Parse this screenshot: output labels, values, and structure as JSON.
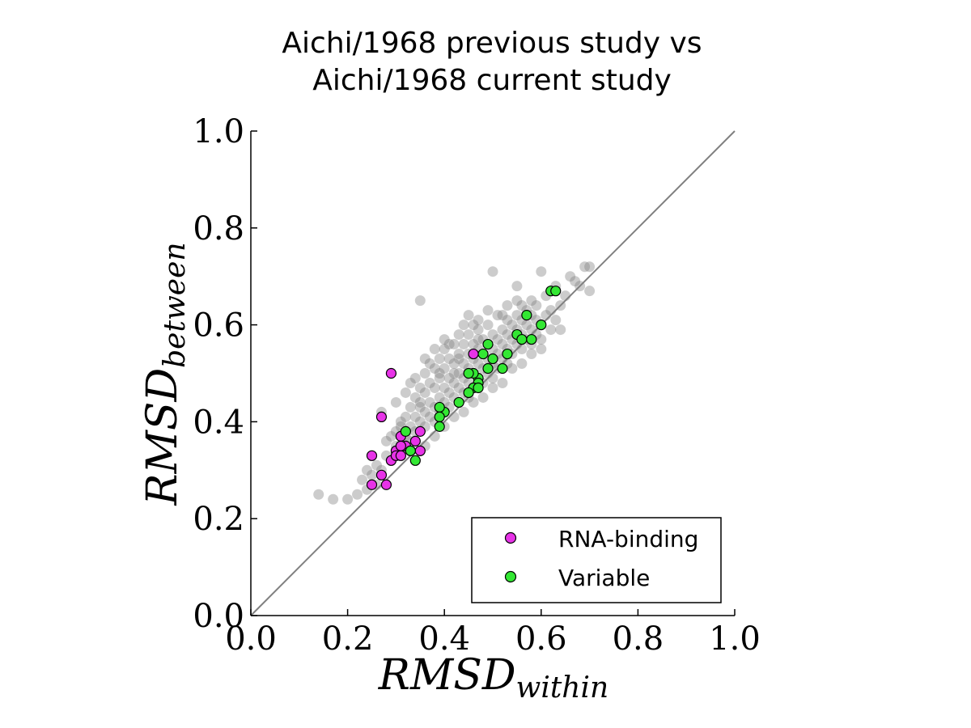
{
  "chart_data": {
    "type": "scatter",
    "title": [
      "Aichi/1968 previous study vs",
      "Aichi/1968 current study"
    ],
    "xlabel": {
      "main": "RMSD",
      "sub": "within"
    },
    "ylabel": {
      "main": "RMSD",
      "sub": "between"
    },
    "xlim": [
      0.0,
      1.0
    ],
    "ylim": [
      0.0,
      1.0
    ],
    "xticks": [
      "0.0",
      "0.2",
      "0.4",
      "0.6",
      "0.8",
      "1.0"
    ],
    "yticks": [
      "0.0",
      "0.2",
      "0.4",
      "0.6",
      "0.8",
      "1.0"
    ],
    "grid": false,
    "legend_position": "bottom-right",
    "reference_line": {
      "type": "y=x",
      "color": "#808080"
    },
    "series": [
      {
        "name": "",
        "color": "#808080",
        "opacity": 0.4,
        "points": [
          [
            0.14,
            0.25
          ],
          [
            0.17,
            0.24
          ],
          [
            0.2,
            0.24
          ],
          [
            0.22,
            0.25
          ],
          [
            0.23,
            0.28
          ],
          [
            0.24,
            0.26
          ],
          [
            0.25,
            0.29
          ],
          [
            0.26,
            0.31
          ],
          [
            0.27,
            0.3
          ],
          [
            0.28,
            0.33
          ],
          [
            0.28,
            0.36
          ],
          [
            0.29,
            0.32
          ],
          [
            0.3,
            0.35
          ],
          [
            0.3,
            0.38
          ],
          [
            0.31,
            0.34
          ],
          [
            0.31,
            0.4
          ],
          [
            0.32,
            0.37
          ],
          [
            0.32,
            0.41
          ],
          [
            0.33,
            0.36
          ],
          [
            0.33,
            0.39
          ],
          [
            0.33,
            0.43
          ],
          [
            0.34,
            0.38
          ],
          [
            0.34,
            0.41
          ],
          [
            0.34,
            0.45
          ],
          [
            0.35,
            0.4
          ],
          [
            0.35,
            0.43
          ],
          [
            0.35,
            0.47
          ],
          [
            0.36,
            0.39
          ],
          [
            0.36,
            0.42
          ],
          [
            0.36,
            0.46
          ],
          [
            0.36,
            0.5
          ],
          [
            0.37,
            0.41
          ],
          [
            0.37,
            0.44
          ],
          [
            0.37,
            0.48
          ],
          [
            0.38,
            0.4
          ],
          [
            0.38,
            0.43
          ],
          [
            0.38,
            0.47
          ],
          [
            0.38,
            0.51
          ],
          [
            0.39,
            0.42
          ],
          [
            0.39,
            0.45
          ],
          [
            0.39,
            0.49
          ],
          [
            0.39,
            0.53
          ],
          [
            0.4,
            0.44
          ],
          [
            0.4,
            0.47
          ],
          [
            0.4,
            0.51
          ],
          [
            0.41,
            0.43
          ],
          [
            0.41,
            0.46
          ],
          [
            0.41,
            0.49
          ],
          [
            0.41,
            0.53
          ],
          [
            0.42,
            0.45
          ],
          [
            0.42,
            0.48
          ],
          [
            0.42,
            0.52
          ],
          [
            0.42,
            0.56
          ],
          [
            0.43,
            0.44
          ],
          [
            0.43,
            0.47
          ],
          [
            0.43,
            0.5
          ],
          [
            0.43,
            0.54
          ],
          [
            0.44,
            0.46
          ],
          [
            0.44,
            0.49
          ],
          [
            0.44,
            0.52
          ],
          [
            0.44,
            0.56
          ],
          [
            0.45,
            0.45
          ],
          [
            0.45,
            0.48
          ],
          [
            0.45,
            0.51
          ],
          [
            0.45,
            0.54
          ],
          [
            0.45,
            0.58
          ],
          [
            0.46,
            0.47
          ],
          [
            0.46,
            0.5
          ],
          [
            0.46,
            0.53
          ],
          [
            0.46,
            0.56
          ],
          [
            0.47,
            0.49
          ],
          [
            0.47,
            0.52
          ],
          [
            0.47,
            0.55
          ],
          [
            0.47,
            0.59
          ],
          [
            0.48,
            0.48
          ],
          [
            0.48,
            0.51
          ],
          [
            0.48,
            0.54
          ],
          [
            0.48,
            0.57
          ],
          [
            0.49,
            0.5
          ],
          [
            0.49,
            0.53
          ],
          [
            0.49,
            0.56
          ],
          [
            0.49,
            0.6
          ],
          [
            0.5,
            0.49
          ],
          [
            0.5,
            0.52
          ],
          [
            0.5,
            0.55
          ],
          [
            0.5,
            0.58
          ],
          [
            0.51,
            0.51
          ],
          [
            0.51,
            0.54
          ],
          [
            0.51,
            0.57
          ],
          [
            0.52,
            0.53
          ],
          [
            0.52,
            0.56
          ],
          [
            0.52,
            0.59
          ],
          [
            0.53,
            0.52
          ],
          [
            0.53,
            0.55
          ],
          [
            0.53,
            0.58
          ],
          [
            0.53,
            0.61
          ],
          [
            0.54,
            0.54
          ],
          [
            0.54,
            0.57
          ],
          [
            0.54,
            0.6
          ],
          [
            0.55,
            0.56
          ],
          [
            0.55,
            0.59
          ],
          [
            0.55,
            0.62
          ],
          [
            0.56,
            0.55
          ],
          [
            0.56,
            0.58
          ],
          [
            0.56,
            0.61
          ],
          [
            0.57,
            0.57
          ],
          [
            0.57,
            0.6
          ],
          [
            0.58,
            0.56
          ],
          [
            0.58,
            0.59
          ],
          [
            0.58,
            0.62
          ],
          [
            0.59,
            0.58
          ],
          [
            0.59,
            0.61
          ],
          [
            0.6,
            0.57
          ],
          [
            0.6,
            0.6
          ],
          [
            0.61,
            0.62
          ],
          [
            0.62,
            0.59
          ],
          [
            0.62,
            0.63
          ],
          [
            0.63,
            0.61
          ],
          [
            0.64,
            0.59
          ],
          [
            0.64,
            0.64
          ],
          [
            0.65,
            0.66
          ],
          [
            0.66,
            0.7
          ],
          [
            0.68,
            0.68
          ],
          [
            0.69,
            0.72
          ],
          [
            0.7,
            0.67
          ],
          [
            0.7,
            0.72
          ],
          [
            0.67,
            0.69
          ],
          [
            0.63,
            0.68
          ],
          [
            0.6,
            0.71
          ],
          [
            0.57,
            0.63
          ],
          [
            0.55,
            0.68
          ],
          [
            0.5,
            0.71
          ],
          [
            0.53,
            0.64
          ],
          [
            0.46,
            0.6
          ],
          [
            0.45,
            0.62
          ],
          [
            0.41,
            0.56
          ],
          [
            0.4,
            0.55
          ],
          [
            0.38,
            0.55
          ],
          [
            0.35,
            0.65
          ],
          [
            0.33,
            0.48
          ],
          [
            0.3,
            0.44
          ],
          [
            0.27,
            0.42
          ],
          [
            0.32,
            0.46
          ],
          [
            0.34,
            0.49
          ],
          [
            0.36,
            0.53
          ],
          [
            0.39,
            0.5
          ],
          [
            0.4,
            0.57
          ],
          [
            0.43,
            0.58
          ],
          [
            0.44,
            0.6
          ],
          [
            0.47,
            0.61
          ],
          [
            0.51,
            0.62
          ],
          [
            0.52,
            0.62
          ],
          [
            0.56,
            0.64
          ],
          [
            0.58,
            0.65
          ],
          [
            0.61,
            0.66
          ],
          [
            0.48,
            0.45
          ],
          [
            0.46,
            0.44
          ],
          [
            0.5,
            0.47
          ],
          [
            0.52,
            0.48
          ],
          [
            0.54,
            0.51
          ],
          [
            0.56,
            0.52
          ],
          [
            0.58,
            0.54
          ],
          [
            0.6,
            0.55
          ],
          [
            0.38,
            0.37
          ],
          [
            0.36,
            0.35
          ],
          [
            0.4,
            0.39
          ],
          [
            0.42,
            0.41
          ],
          [
            0.44,
            0.42
          ],
          [
            0.26,
            0.27
          ],
          [
            0.24,
            0.3
          ],
          [
            0.29,
            0.37
          ],
          [
            0.31,
            0.39
          ],
          [
            0.35,
            0.44
          ],
          [
            0.37,
            0.52
          ],
          [
            0.42,
            0.5
          ],
          [
            0.43,
            0.53
          ],
          [
            0.47,
            0.57
          ],
          [
            0.49,
            0.63
          ],
          [
            0.55,
            0.65
          ],
          [
            0.59,
            0.64
          ]
        ]
      },
      {
        "name": "RNA-binding",
        "color": "#e733e7",
        "points": [
          [
            0.29,
            0.5
          ],
          [
            0.27,
            0.41
          ],
          [
            0.25,
            0.33
          ],
          [
            0.25,
            0.27
          ],
          [
            0.27,
            0.29
          ],
          [
            0.28,
            0.27
          ],
          [
            0.29,
            0.32
          ],
          [
            0.3,
            0.34
          ],
          [
            0.3,
            0.33
          ],
          [
            0.31,
            0.33
          ],
          [
            0.31,
            0.37
          ],
          [
            0.32,
            0.35
          ],
          [
            0.33,
            0.34
          ],
          [
            0.34,
            0.36
          ],
          [
            0.35,
            0.34
          ],
          [
            0.35,
            0.38
          ],
          [
            0.46,
            0.54
          ],
          [
            0.31,
            0.35
          ]
        ]
      },
      {
        "name": "Variable",
        "color": "#33e733",
        "points": [
          [
            0.62,
            0.67
          ],
          [
            0.63,
            0.67
          ],
          [
            0.57,
            0.62
          ],
          [
            0.6,
            0.6
          ],
          [
            0.55,
            0.58
          ],
          [
            0.56,
            0.57
          ],
          [
            0.58,
            0.57
          ],
          [
            0.53,
            0.54
          ],
          [
            0.48,
            0.54
          ],
          [
            0.49,
            0.56
          ],
          [
            0.49,
            0.51
          ],
          [
            0.5,
            0.53
          ],
          [
            0.52,
            0.51
          ],
          [
            0.47,
            0.49
          ],
          [
            0.47,
            0.48
          ],
          [
            0.46,
            0.5
          ],
          [
            0.45,
            0.5
          ],
          [
            0.46,
            0.47
          ],
          [
            0.45,
            0.46
          ],
          [
            0.47,
            0.47
          ],
          [
            0.43,
            0.44
          ],
          [
            0.4,
            0.42
          ],
          [
            0.39,
            0.43
          ],
          [
            0.39,
            0.41
          ],
          [
            0.39,
            0.39
          ],
          [
            0.32,
            0.38
          ],
          [
            0.33,
            0.34
          ],
          [
            0.34,
            0.32
          ]
        ]
      }
    ]
  }
}
